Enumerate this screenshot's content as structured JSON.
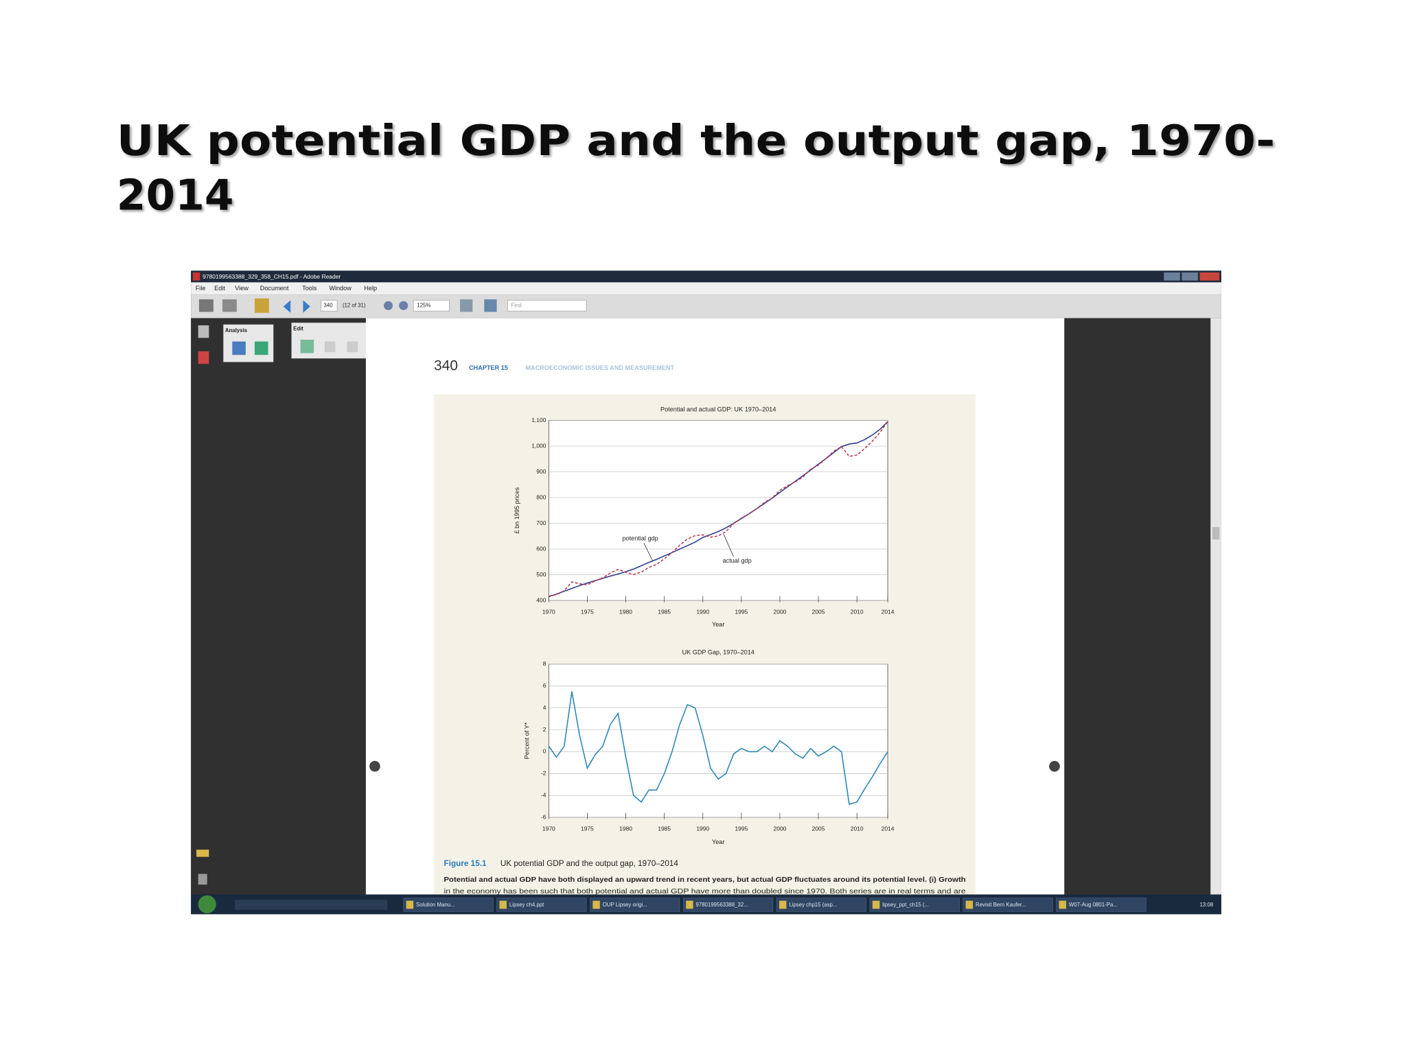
{
  "slide": {
    "title_lines": [
      "UK potential GDP and the output gap, 1970-",
      "2014"
    ]
  },
  "window": {
    "title": "9780199563388_329_358_CH15.pdf - Adobe Reader",
    "menu": [
      "File",
      "Edit",
      "View",
      "Document",
      "Tools",
      "Window",
      "Help"
    ],
    "toolbar": {
      "page": "340",
      "page_count": "(12 of 31)",
      "zoom": "125%",
      "find": "Find"
    },
    "panels": [
      "Analysis",
      "Edit"
    ]
  },
  "page": {
    "number": "340",
    "chapter": "CHAPTER 15",
    "running_head": "MACROECONOMIC ISSUES AND MEASUREMENT",
    "figure_label": "Figure 15.1",
    "figure_title": "UK potential GDP and the output gap, 1970–2014",
    "caption_lines": [
      "Potential and actual GDP have both displayed an upward trend in recent years, but actual GDP fluctuates around its potential level. (i) Growth",
      "in the economy has been such that both potential and actual GDP have more than doubled since 1970. Both series are in real terms and are"
    ]
  },
  "chart_data": [
    {
      "type": "line",
      "title": "Potential and actual GDP: UK 1970–2014",
      "x_label": "Year",
      "y_label": "£ bn 1995 prices",
      "x": [
        1970,
        1971,
        1972,
        1973,
        1974,
        1975,
        1976,
        1977,
        1978,
        1979,
        1980,
        1981,
        1982,
        1983,
        1984,
        1985,
        1986,
        1987,
        1988,
        1989,
        1990,
        1991,
        1992,
        1993,
        1994,
        1995,
        1996,
        1997,
        1998,
        1999,
        2000,
        2001,
        2002,
        2003,
        2004,
        2005,
        2006,
        2007,
        2008,
        2009,
        2010,
        2011,
        2012,
        2013,
        2014
      ],
      "xlim": [
        1970,
        2014
      ],
      "xticks": [
        1970,
        1975,
        1980,
        1985,
        1990,
        1995,
        2000,
        2005,
        2010,
        2014
      ],
      "ylim": [
        400,
        1100
      ],
      "yticks": [
        400,
        500,
        600,
        700,
        800,
        900,
        {
          "value": 1000,
          "label": "1,000"
        },
        {
          "value": 1100,
          "label": "1,100"
        }
      ],
      "grid": true,
      "series": [
        {
          "name": "potential gdp",
          "color": "#2b3c8c",
          "line_style": "solid",
          "values": [
            415,
            425,
            436,
            447,
            458,
            468,
            477,
            486,
            495,
            503,
            512,
            522,
            535,
            548,
            560,
            573,
            586,
            600,
            613,
            627,
            645,
            656,
            668,
            682,
            700,
            718,
            737,
            757,
            777,
            798,
            820,
            842,
            863,
            885,
            907,
            930,
            952,
            975,
            998,
            1008,
            1012,
            1025,
            1043,
            1065,
            1095
          ]
        },
        {
          "name": "actual gdp",
          "color": "#c0354a",
          "line_style": "dashed",
          "values": [
            417,
            423,
            438,
            472,
            465,
            461,
            476,
            488,
            507,
            521,
            509,
            501,
            510,
            529,
            540,
            562,
            586,
            615,
            639,
            652,
            655,
            646,
            651,
            668,
            699,
            720,
            737,
            757,
            781,
            798,
            828,
            846,
            861,
            880,
            910,
            926,
            952,
            980,
            998,
            960,
            965,
            990,
            1019,
            1053,
            1095
          ]
        }
      ]
    },
    {
      "type": "line",
      "title": "UK GDP Gap, 1970–2014",
      "x_label": "Year",
      "y_label": "Percent of Y*",
      "x": [
        1970,
        1971,
        1972,
        1973,
        1974,
        1975,
        1976,
        1977,
        1978,
        1979,
        1980,
        1981,
        1982,
        1983,
        1984,
        1985,
        1986,
        1987,
        1988,
        1989,
        1990,
        1991,
        1992,
        1993,
        1994,
        1995,
        1996,
        1997,
        1998,
        1999,
        2000,
        2001,
        2002,
        2003,
        2004,
        2005,
        2006,
        2007,
        2008,
        2009,
        2010,
        2011,
        2012,
        2013,
        2014
      ],
      "xlim": [
        1970,
        2014
      ],
      "xticks": [
        1970,
        1975,
        1980,
        1985,
        1990,
        1995,
        2000,
        2005,
        2010,
        2014
      ],
      "ylim": [
        -6,
        8
      ],
      "yticks": [
        -6,
        -4,
        -2,
        0,
        2,
        4,
        6,
        8
      ],
      "grid": true,
      "color": "#2a86b8",
      "values": [
        0.5,
        -0.5,
        0.5,
        5.5,
        1.5,
        -1.5,
        -0.3,
        0.5,
        2.5,
        3.5,
        -0.5,
        -4,
        -4.6,
        -3.5,
        -3.5,
        -2,
        0,
        2.5,
        4.3,
        4,
        1.5,
        -1.5,
        -2.5,
        -2,
        -0.2,
        0.3,
        0,
        0,
        0.5,
        0,
        1,
        0.5,
        -0.2,
        -0.6,
        0.3,
        -0.4,
        0,
        0.5,
        0,
        -4.8,
        -4.6,
        -3.4,
        -2.3,
        -1.1,
        0
      ]
    }
  ],
  "taskbar": {
    "items": [
      "Solution Manu...",
      "Lipsey ch4.ppt",
      "OUP Lipsey origi...",
      "9780199563388_32...",
      "Lipsey chp15 (asp...",
      "lipsey_ppt_ch15 (...",
      "Revisit Bern Kaufer...",
      "W07-Aug 0801-Pa..."
    ],
    "clock": "13:08"
  }
}
